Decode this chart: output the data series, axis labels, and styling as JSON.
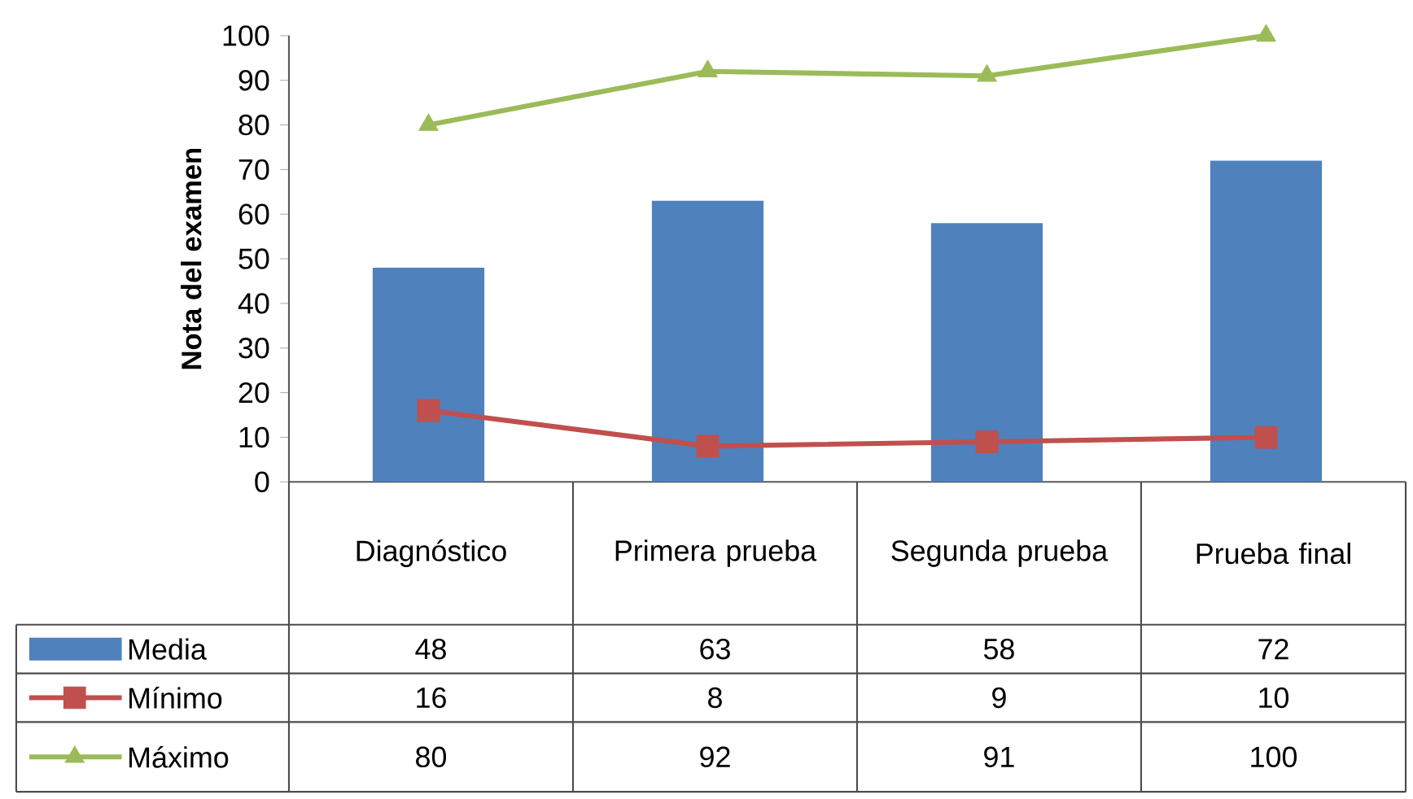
{
  "chart_data": {
    "type": "bar",
    "ylabel": "Nota del examen",
    "categories": [
      "Diagnóstico",
      "Primera prueba",
      "Segunda prueba",
      "Prueba final"
    ],
    "series": [
      {
        "name": "Media",
        "color": "#4f81bd",
        "values": [
          48,
          63,
          58,
          72
        ]
      },
      {
        "name": "Mínimo",
        "type": "line",
        "color": "#c0504d",
        "marker": "square",
        "values": [
          16,
          8,
          9,
          10
        ]
      },
      {
        "name": "Máximo",
        "type": "line",
        "color": "#9bbb59",
        "marker": "triangle",
        "values": [
          80,
          92,
          91,
          100
        ]
      }
    ],
    "ylim": [
      0,
      100
    ],
    "yticks": [
      0,
      10,
      20,
      30,
      40,
      50,
      60,
      70,
      80,
      90,
      100
    ],
    "legend": "bottom",
    "data_labels": true
  }
}
